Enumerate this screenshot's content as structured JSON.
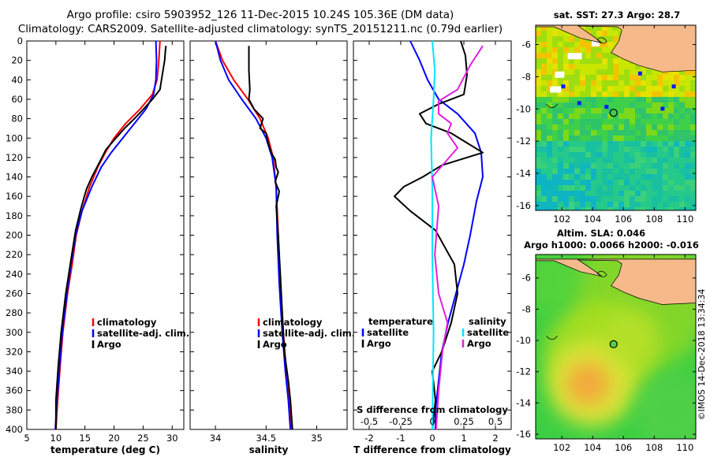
{
  "header": {
    "line1": "Argo profile: csiro 5903952_126 11-Dec-2015 10.24S 105.36E (DM data)",
    "line2": "Climatology: CARS2009. Satellite-adjusted climatology: synTS_20151211.nc (0.79d earlier)"
  },
  "watermark": "©IMOS 14-Dec-2018 13:34:34",
  "colors": {
    "clim": "#ff0000",
    "sat": "#0000ff",
    "argo": "#000000",
    "sat_s": "#00e5ff",
    "argo_s": "#e020e0",
    "land": "#f5b98a"
  },
  "chart_data": [
    {
      "type": "line",
      "id": "temperature",
      "xlabel": "temperature (deg C)",
      "ylabel": "",
      "xlim": [
        5,
        32
      ],
      "ylim": [
        400,
        0
      ],
      "xticks": [
        5,
        10,
        15,
        20,
        25,
        30
      ],
      "yticks": [
        0,
        20,
        40,
        60,
        80,
        100,
        120,
        140,
        160,
        180,
        200,
        220,
        240,
        260,
        280,
        300,
        320,
        340,
        360,
        380,
        400
      ],
      "legend": [
        "climatology",
        "satellite-adj. clim.",
        "Argo"
      ],
      "series": [
        {
          "name": "climatology",
          "color": "red",
          "x": [
            27.9,
            27.7,
            27.4,
            26.6,
            24.5,
            22,
            20,
            18.5,
            17.2,
            15.8,
            14.5,
            13.5,
            12.8,
            12.0,
            11.2,
            10.8,
            10.3,
            10.0
          ],
          "y": [
            0,
            20,
            40,
            55,
            70,
            85,
            100,
            115,
            130,
            150,
            175,
            200,
            230,
            260,
            300,
            330,
            370,
            400
          ]
        },
        {
          "name": "satellite-adj. clim.",
          "color": "blue",
          "x": [
            27.2,
            27.3,
            27.2,
            26.8,
            25.5,
            23.5,
            21.5,
            19.5,
            17.8,
            16.2,
            14.5,
            13.4,
            12.6,
            11.9,
            11.1,
            10.7,
            10.2,
            9.9
          ],
          "y": [
            0,
            20,
            40,
            55,
            70,
            85,
            100,
            115,
            130,
            150,
            175,
            200,
            230,
            260,
            300,
            330,
            370,
            400
          ]
        },
        {
          "name": "Argo",
          "color": "black",
          "x": [
            28.9,
            28.7,
            28.3,
            27.9,
            26.6,
            25.1,
            23.5,
            21.8,
            20.3,
            18.6,
            17.5,
            16.2,
            15.3,
            14.8,
            14.2,
            13.4,
            12.6,
            11.7,
            10.9,
            10.4,
            10.0,
            10.0
          ],
          "y": [
            5,
            20,
            35,
            50,
            60,
            70,
            80,
            90,
            100,
            112,
            125,
            140,
            152,
            162,
            175,
            195,
            225,
            260,
            300,
            335,
            370,
            400
          ]
        }
      ]
    },
    {
      "type": "line",
      "id": "salinity",
      "xlabel": "salinity",
      "ylabel": "",
      "xlim": [
        33.75,
        35.3
      ],
      "ylim": [
        400,
        0
      ],
      "xticks": [
        34,
        34.5,
        35
      ],
      "legend": [
        "climatology",
        "satellite-adj. clim.",
        "Argo"
      ],
      "series": [
        {
          "name": "climatology",
          "color": "red",
          "x": [
            34.0,
            34.07,
            34.18,
            34.32,
            34.44,
            34.52,
            34.57,
            34.6,
            34.62,
            34.64,
            34.67,
            34.7,
            34.73,
            34.75
          ],
          "y": [
            0,
            20,
            40,
            60,
            80,
            100,
            120,
            150,
            200,
            250,
            300,
            340,
            370,
            400
          ]
        },
        {
          "name": "satellite-adj. clim.",
          "color": "blue",
          "x": [
            34.0,
            34.05,
            34.13,
            34.26,
            34.4,
            34.5,
            34.56,
            34.6,
            34.61,
            34.63,
            34.66,
            34.69,
            34.72,
            34.74
          ],
          "y": [
            0,
            20,
            40,
            60,
            80,
            100,
            120,
            150,
            200,
            250,
            300,
            340,
            370,
            400
          ]
        },
        {
          "name": "Argo",
          "color": "black",
          "x": [
            34.33,
            34.33,
            34.34,
            34.33,
            34.38,
            34.47,
            34.44,
            34.5,
            34.52,
            34.55,
            34.59,
            34.6,
            34.62,
            34.59,
            34.63,
            34.6,
            34.62,
            34.64,
            34.66,
            34.68,
            34.72,
            34.74,
            34.76
          ],
          "y": [
            5,
            30,
            50,
            60,
            70,
            80,
            90,
            95,
            105,
            115,
            122,
            130,
            135,
            145,
            155,
            170,
            200,
            240,
            280,
            320,
            350,
            370,
            400
          ]
        }
      ]
    },
    {
      "type": "line",
      "id": "difference",
      "xlabel": "T difference from climatology",
      "s_axis_label": "S difference from climatology",
      "xlim": [
        -2.5,
        2.5
      ],
      "ylim": [
        400,
        0
      ],
      "xticks": [
        -2,
        -1,
        0,
        1,
        2
      ],
      "s_xlim": [
        -0.625,
        0.625
      ],
      "s_xticks": [
        -0.5,
        -0.25,
        0,
        0.25,
        0.5
      ],
      "s_xtick_labels": [
        "-0.5",
        "-0.25",
        "0",
        "0.25",
        "0.5"
      ],
      "legend_temperature": [
        "temperature",
        "satellite",
        "Argo"
      ],
      "legend_salinity": [
        "salinity",
        "satellite",
        "Argo"
      ],
      "series": [
        {
          "name": "temperature satellite",
          "color": "blue",
          "axis": "T",
          "x": [
            -0.7,
            -0.4,
            -0.15,
            0.2,
            0.8,
            1.35,
            1.55,
            1.6,
            1.4,
            1.2,
            1.0,
            0.75,
            0.5,
            0.3,
            0.2,
            0.1,
            0.1
          ],
          "y": [
            0,
            20,
            40,
            60,
            75,
            95,
            115,
            140,
            165,
            200,
            230,
            260,
            290,
            320,
            350,
            380,
            400
          ]
        },
        {
          "name": "temperature Argo",
          "color": "black",
          "axis": "T",
          "x": [
            0.9,
            1.05,
            1.1,
            1.0,
            0.2,
            -0.4,
            -0.2,
            0.6,
            1.1,
            1.6,
            0.3,
            -0.3,
            -0.9,
            -1.2,
            -0.7,
            0.1,
            0.7,
            0.8,
            0.6,
            0.3,
            0.0,
            0.1,
            0.0
          ],
          "y": [
            0,
            15,
            35,
            55,
            65,
            75,
            85,
            95,
            105,
            115,
            128,
            140,
            150,
            160,
            175,
            195,
            230,
            260,
            290,
            320,
            340,
            370,
            400
          ]
        },
        {
          "name": "salinity satellite",
          "color": "cyan",
          "axis": "S",
          "x": [
            0.0,
            0.02,
            0.01,
            -0.01,
            0.0,
            0.0,
            0.01,
            0.0
          ],
          "y": [
            0,
            30,
            60,
            100,
            150,
            220,
            300,
            400
          ]
        },
        {
          "name": "salinity Argo",
          "color": "magenta",
          "axis": "S",
          "x": [
            0.4,
            0.3,
            0.2,
            0.05,
            0.05,
            0.15,
            0.12,
            0.2,
            0.1,
            0.0,
            0.05,
            0.02,
            0.05,
            0.12,
            0.08,
            0.05,
            0.03
          ],
          "y": [
            5,
            25,
            50,
            62,
            75,
            85,
            95,
            110,
            125,
            140,
            170,
            220,
            260,
            290,
            320,
            360,
            400
          ]
        }
      ]
    },
    {
      "type": "heatmap",
      "id": "sst_map",
      "title": "sat. SST: 27.3 Argo: 28.7",
      "xlim": [
        100.3,
        110.7
      ],
      "ylim": [
        -16.3,
        -4.8
      ],
      "xticks": [
        102,
        104,
        106,
        108,
        110
      ],
      "yticks": [
        -6,
        -8,
        -10,
        -12,
        -14,
        -16
      ],
      "marker": {
        "lon": 105.36,
        "lat": -10.24
      }
    },
    {
      "type": "heatmap",
      "id": "sla_map",
      "title": "Altim. SLA: 0.046",
      "subtitle": "Argo h1000: 0.0066 h2000: -0.016",
      "xlim": [
        100.3,
        110.7
      ],
      "ylim": [
        -16.3,
        -4.5
      ],
      "xticks": [
        102,
        104,
        106,
        108,
        110
      ],
      "yticks": [
        -6,
        -8,
        -10,
        -12,
        -14,
        -16
      ],
      "marker": {
        "lon": 105.36,
        "lat": -10.24
      }
    }
  ]
}
